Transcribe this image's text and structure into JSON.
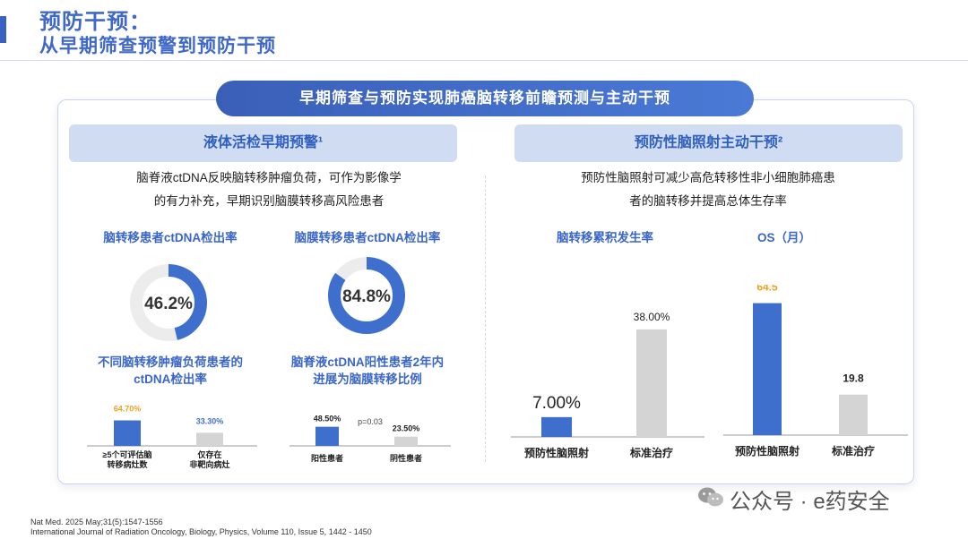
{
  "header": {
    "title_line1": "预防干预：",
    "title_line2": "从早期筛查预警到预防干预"
  },
  "banner": "早期筛查与预防实现肺癌脑转移前瞻预测与主动干预",
  "left": {
    "heading": "液体活检早期预警¹",
    "description_line1": "脑脊液ctDNA反映脑转移肿瘤负荷，可作为影像学",
    "description_line2": "的有力补充，早期识别脑膜转移高风险患者",
    "donut1_title": "脑转移患者ctDNA检出率",
    "donut2_title": "脑膜转移患者ctDNA检出率",
    "bar1_title_line1": "不同脑转移肿瘤负荷患者的",
    "bar1_title_line2": "ctDNA检出率",
    "bar2_title_line1": "脑脊液ctDNA阳性患者2年内",
    "bar2_title_line2": "进展为脑膜转移比例",
    "pvalue": "p=0.03"
  },
  "right": {
    "heading": "预防性脑照射主动干预²",
    "description_line1": "预防性脑照射可减少高危转移性非小细胞肺癌患",
    "description_line2": "者的脑转移并提高总体生存率",
    "chart1_title": "脑转移累积发生率",
    "chart2_title": "OS（月）"
  },
  "chart_data": [
    {
      "type": "pie",
      "title": "脑转移患者ctDNA检出率",
      "values": [
        46.2
      ],
      "value_label": "46.2%",
      "unit": "%"
    },
    {
      "type": "pie",
      "title": "脑膜转移患者ctDNA检出率",
      "values": [
        84.8
      ],
      "value_label": "84.8%",
      "unit": "%"
    },
    {
      "type": "bar",
      "title": "不同脑转移肿瘤负荷患者的ctDNA检出率",
      "categories": [
        [
          "≥5个可评估脑",
          "转移病灶数"
        ],
        [
          "仅存在",
          "非靶向病灶"
        ]
      ],
      "values": [
        64.7,
        33.3
      ],
      "value_labels": [
        "64.70%",
        "33.30%"
      ],
      "ylim": [
        0,
        100
      ]
    },
    {
      "type": "bar",
      "title": "脑脊液ctDNA阳性患者2年内进展为脑膜转移比例",
      "categories": [
        [
          "阳性患者"
        ],
        [
          "阴性患者"
        ]
      ],
      "values": [
        48.5,
        23.5
      ],
      "value_labels": [
        "48.50%",
        "23.50%"
      ],
      "ylim": [
        0,
        100
      ]
    },
    {
      "type": "bar",
      "title": "脑转移累积发生率",
      "categories": [
        [
          "预防性脑照射"
        ],
        [
          "标准治疗"
        ]
      ],
      "values": [
        7.0,
        38.0
      ],
      "value_labels": [
        "7.00%",
        "38.00%"
      ],
      "ylim": [
        0,
        50
      ]
    },
    {
      "type": "bar",
      "title": "OS（月）",
      "categories": [
        [
          "预防性脑照射"
        ],
        [
          "标准治疗"
        ]
      ],
      "values": [
        64.5,
        19.8
      ],
      "value_labels": [
        "64.5",
        "19.8"
      ],
      "ylim": [
        0,
        70
      ]
    }
  ],
  "colors": {
    "primary": "#3f6fcc",
    "accent_orange": "#f0a020",
    "gray_bar": "#d4d4d4",
    "ring_track": "#ececec"
  },
  "footnotes": {
    "line1": "Nat Med. 2025 May;31(5):1547-1556",
    "line2": "International Journal of Radiation Oncology, Biology, Physics, Volume 110, Issue 5, 1442 - 1450"
  },
  "watermark": "公众号 · e药安全"
}
